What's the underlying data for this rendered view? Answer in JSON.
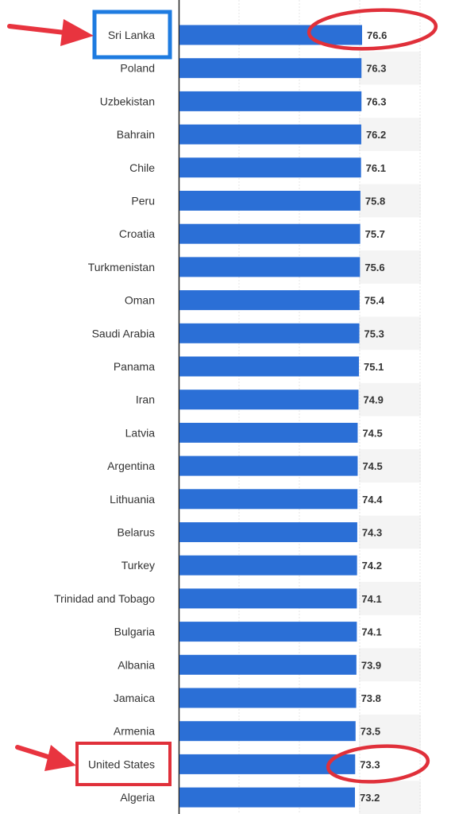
{
  "chart_data": {
    "type": "bar",
    "orientation": "horizontal",
    "categories": [
      "Sri Lanka",
      "Poland",
      "Uzbekistan",
      "Bahrain",
      "Chile",
      "Peru",
      "Croatia",
      "Turkmenistan",
      "Oman",
      "Saudi Arabia",
      "Panama",
      "Iran",
      "Latvia",
      "Argentina",
      "Lithuania",
      "Belarus",
      "Turkey",
      "Trinidad and Tobago",
      "Bulgaria",
      "Albania",
      "Jamaica",
      "Armenia",
      "United States",
      "Algeria"
    ],
    "values": [
      76.6,
      76.3,
      76.3,
      76.2,
      76.1,
      75.8,
      75.7,
      75.6,
      75.4,
      75.3,
      75.1,
      74.9,
      74.5,
      74.5,
      74.4,
      74.3,
      74.2,
      74.1,
      74.1,
      73.9,
      73.8,
      73.5,
      73.3,
      73.2
    ],
    "value_labels": [
      "76.6",
      "76.3",
      "76.3",
      "76.2",
      "76.1",
      "75.8",
      "75.7",
      "75.6",
      "75.4",
      "75.3",
      "75.1",
      "74.9",
      "74.5",
      "74.5",
      "74.4",
      "74.3",
      "74.2",
      "74.1",
      "74.1",
      "73.9",
      "73.8",
      "73.5",
      "73.3",
      "73.2"
    ],
    "title": "",
    "xlabel": "",
    "ylabel": "",
    "bar_color": "#2b6fd6",
    "grid": true,
    "highlighted": [
      "Sri Lanka",
      "United States"
    ],
    "annotation_colors": {
      "box_sri_lanka": "#1e7be0",
      "box_united_states": "#e0303a",
      "arrow": "#e8343f",
      "ellipse": "#e0303a"
    }
  }
}
